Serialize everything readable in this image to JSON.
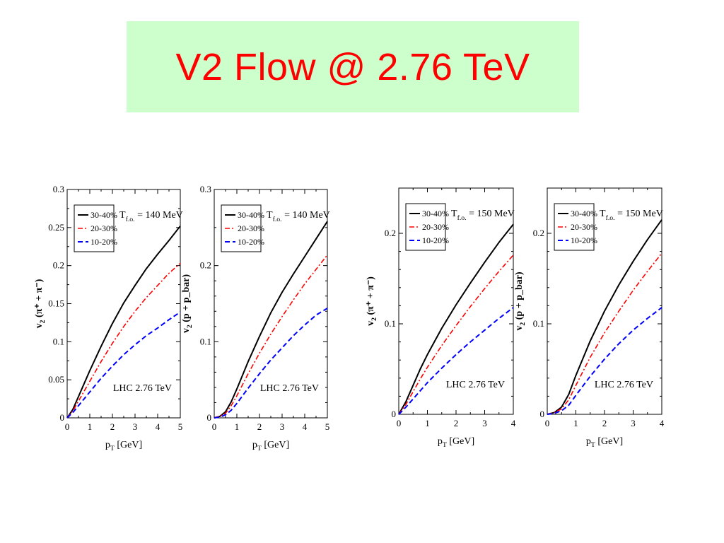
{
  "slide": {
    "title": "V2 Flow @ 2.76 TeV"
  },
  "colors": {
    "s1": "#000000",
    "s2": "#ff0000",
    "s3": "#0000ff",
    "title_bg": "#ccffcc",
    "title_fg": "#ff0000"
  },
  "chart_data": [
    {
      "type": "line",
      "title": "",
      "xlabel": "p_T [GeV]",
      "ylabel": "v_2 (π⁺ + π⁻)",
      "xlim": [
        0,
        5
      ],
      "ylim": [
        0,
        0.3
      ],
      "xticks": [
        0,
        1,
        2,
        3,
        4,
        5
      ],
      "yticks": [
        0,
        0.05,
        0.1,
        0.15,
        0.2,
        0.25,
        0.3
      ],
      "ytick_labels": [
        "0",
        "0.05",
        "0.1",
        "0.15",
        "0.2",
        "0.25",
        "0.3"
      ],
      "grid": false,
      "legend_position": "top-left",
      "tfo_label": "T_f.o. = 140 MeV",
      "annotation": "LHC 2.76 TeV",
      "series": [
        {
          "name": "30-40%",
          "x": [
            0,
            0.25,
            0.5,
            0.75,
            1,
            1.5,
            2,
            2.5,
            3,
            3.5,
            4,
            4.5,
            5
          ],
          "y": [
            0,
            0.011,
            0.028,
            0.045,
            0.062,
            0.094,
            0.124,
            0.151,
            0.174,
            0.196,
            0.215,
            0.233,
            0.252
          ]
        },
        {
          "name": "20-30%",
          "x": [
            0,
            0.25,
            0.5,
            0.75,
            1,
            1.5,
            2,
            2.5,
            3,
            3.5,
            4,
            4.5,
            5
          ],
          "y": [
            0,
            0.009,
            0.022,
            0.035,
            0.048,
            0.074,
            0.098,
            0.12,
            0.14,
            0.158,
            0.174,
            0.19,
            0.203
          ]
        },
        {
          "name": "10-20%",
          "x": [
            0,
            0.25,
            0.5,
            0.75,
            1,
            1.5,
            2,
            2.5,
            3,
            3.5,
            4,
            4.5,
            5
          ],
          "y": [
            0,
            0.007,
            0.016,
            0.025,
            0.034,
            0.052,
            0.068,
            0.083,
            0.096,
            0.108,
            0.118,
            0.129,
            0.139
          ]
        }
      ]
    },
    {
      "type": "line",
      "title": "",
      "xlabel": "p_T [GeV]",
      "ylabel": "v_2 (p + p_bar)",
      "xlim": [
        0,
        5
      ],
      "ylim": [
        0,
        0.3
      ],
      "xticks": [
        0,
        1,
        2,
        3,
        4,
        5
      ],
      "yticks": [
        0,
        0.1,
        0.2,
        0.3
      ],
      "ytick_labels": [
        "0",
        "0.1",
        "0.2",
        "0.3"
      ],
      "grid": false,
      "legend_position": "top-left",
      "tfo_label": "T_f.o. = 140 MeV",
      "annotation": "LHC 2.76 TeV",
      "series": [
        {
          "name": "30-40%",
          "x": [
            0,
            0.25,
            0.5,
            0.75,
            1,
            1.5,
            2,
            2.5,
            3,
            3.5,
            4,
            4.5,
            5
          ],
          "y": [
            0,
            0.002,
            0.008,
            0.021,
            0.038,
            0.074,
            0.107,
            0.138,
            0.165,
            0.189,
            0.212,
            0.235,
            0.258
          ]
        },
        {
          "name": "20-30%",
          "x": [
            0,
            0.25,
            0.5,
            0.75,
            1,
            1.5,
            2,
            2.5,
            3,
            3.5,
            4,
            4.5,
            5
          ],
          "y": [
            0,
            0.002,
            0.006,
            0.016,
            0.029,
            0.058,
            0.085,
            0.11,
            0.133,
            0.155,
            0.176,
            0.195,
            0.214
          ]
        },
        {
          "name": "10-20%",
          "x": [
            0,
            0.25,
            0.5,
            0.75,
            1,
            1.5,
            2,
            2.5,
            3,
            3.5,
            4,
            4.5,
            5
          ],
          "y": [
            0,
            0.001,
            0.004,
            0.01,
            0.019,
            0.039,
            0.058,
            0.076,
            0.092,
            0.108,
            0.122,
            0.135,
            0.144
          ]
        }
      ]
    },
    {
      "type": "line",
      "title": "",
      "xlabel": "p_T [GeV]",
      "ylabel": "v_2 (π⁺ + π⁻)",
      "xlim": [
        0,
        4
      ],
      "ylim": [
        0,
        0.25
      ],
      "xticks": [
        0,
        1,
        2,
        3,
        4
      ],
      "yticks": [
        0,
        0.1,
        0.2
      ],
      "ytick_labels": [
        "0",
        "0.1",
        "0.2"
      ],
      "grid": false,
      "legend_position": "top-left",
      "tfo_label": "T_f.o. = 150 MeV",
      "annotation": "LHC 2.76 TeV",
      "series": [
        {
          "name": "30-40%",
          "x": [
            0,
            0.25,
            0.5,
            0.75,
            1,
            1.5,
            2,
            2.5,
            3,
            3.5,
            4
          ],
          "y": [
            0,
            0.014,
            0.032,
            0.05,
            0.066,
            0.095,
            0.121,
            0.145,
            0.168,
            0.19,
            0.21
          ]
        },
        {
          "name": "20-30%",
          "x": [
            0,
            0.25,
            0.5,
            0.75,
            1,
            1.5,
            2,
            2.5,
            3,
            3.5,
            4
          ],
          "y": [
            0,
            0.011,
            0.025,
            0.039,
            0.052,
            0.076,
            0.098,
            0.119,
            0.139,
            0.158,
            0.176
          ]
        },
        {
          "name": "10-20%",
          "x": [
            0,
            0.25,
            0.5,
            0.75,
            1,
            1.5,
            2,
            2.5,
            3,
            3.5,
            4
          ],
          "y": [
            0,
            0.008,
            0.017,
            0.026,
            0.035,
            0.051,
            0.066,
            0.08,
            0.093,
            0.106,
            0.118
          ]
        }
      ]
    },
    {
      "type": "line",
      "title": "",
      "xlabel": "p_T [GeV]",
      "ylabel": "v_2 (p + p_bar)",
      "xlim": [
        0,
        4
      ],
      "ylim": [
        0,
        0.25
      ],
      "xticks": [
        0,
        1,
        2,
        3,
        4
      ],
      "yticks": [
        0,
        0.1,
        0.2
      ],
      "ytick_labels": [
        "0",
        "0.1",
        "0.2"
      ],
      "grid": false,
      "legend_position": "top-left",
      "tfo_label": "T_f.o. = 150 MeV",
      "annotation": "LHC 2.76 TeV",
      "series": [
        {
          "name": "30-40%",
          "x": [
            0,
            0.25,
            0.5,
            0.75,
            1,
            1.5,
            2,
            2.5,
            3,
            3.5,
            4
          ],
          "y": [
            0,
            0.002,
            0.008,
            0.022,
            0.043,
            0.081,
            0.114,
            0.143,
            0.169,
            0.193,
            0.215
          ]
        },
        {
          "name": "20-30%",
          "x": [
            0,
            0.25,
            0.5,
            0.75,
            1,
            1.5,
            2,
            2.5,
            3,
            3.5,
            4
          ],
          "y": [
            0,
            0.002,
            0.006,
            0.016,
            0.032,
            0.063,
            0.09,
            0.114,
            0.137,
            0.158,
            0.178
          ]
        },
        {
          "name": "10-20%",
          "x": [
            0,
            0.25,
            0.5,
            0.75,
            1,
            1.5,
            2,
            2.5,
            3,
            3.5,
            4
          ],
          "y": [
            0,
            0.001,
            0.004,
            0.01,
            0.021,
            0.042,
            0.061,
            0.078,
            0.093,
            0.106,
            0.118
          ]
        }
      ]
    }
  ]
}
